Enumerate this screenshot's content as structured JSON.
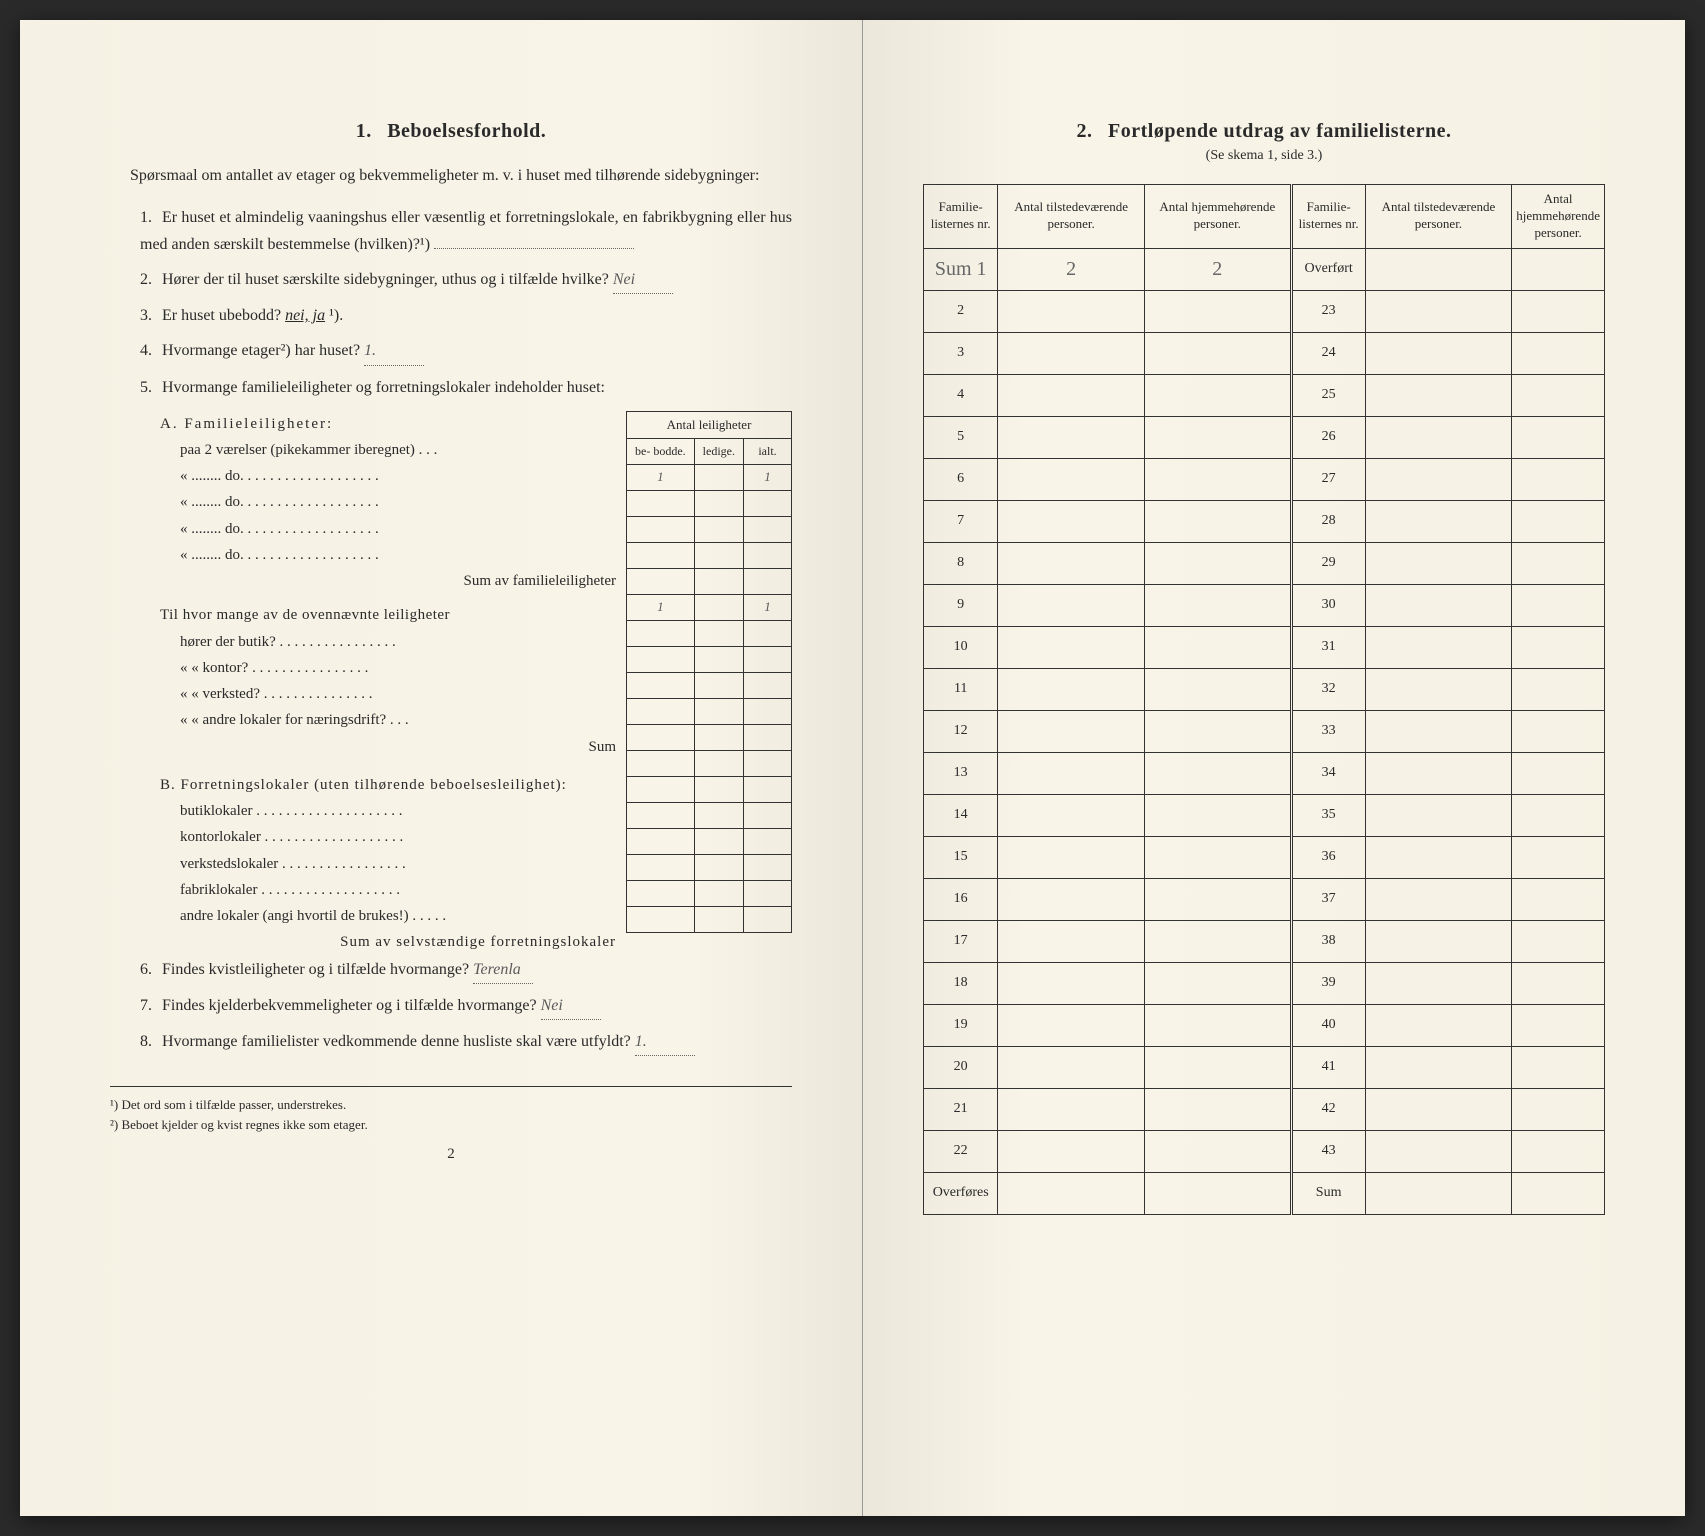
{
  "left": {
    "section_num": "1.",
    "section_title": "Beboelsesforhold.",
    "intro": "Spørsmaal om antallet av etager og bekvemmeligheter m. v. i huset med tilhørende sidebygninger:",
    "q1": "Er huset et almindelig vaaningshus eller væsentlig et forretningslokale, en fabrikbygning eller hus med anden særskilt bestemmelse (hvilken)?¹)",
    "q2": "Hører der til huset særskilte sidebygninger, uthus og i tilfælde hvilke?",
    "q2_answer": "Nei",
    "q3_pre": "Er huset ubebodd?",
    "q3_opts": "nei,  ja",
    "q3_suffix": "¹).",
    "q4_pre": "Hvormange etager²) har huset?",
    "q4_answer": "1.",
    "q5": "Hvormange familieleiligheter og forretningslokaler indeholder huset:",
    "leil_header_top": "Antal leiligheter",
    "leil_header_cols": [
      "be-\nbodde.",
      "ledige.",
      "ialt."
    ],
    "A_title": "A. Familieleiligheter:",
    "A_rows": [
      "paa 2 værelser (pikekammer iberegnet) . . .",
      "«  ........  do.  . . . . . . . . . . . . . . . . . .",
      "«  ........  do.  . . . . . . . . . . . . . . . . . .",
      "«  ........  do.  . . . . . . . . . . . . . . . . . .",
      "«  ........  do.  . . . . . . . . . . . . . . . . . ."
    ],
    "A_sum_label": "Sum av familieleiligheter",
    "A_values": {
      "row0": [
        "1",
        "",
        "1"
      ],
      "sum": [
        "1",
        "",
        "1"
      ]
    },
    "A_sub_pre": "Til hvor mange av de ovennævnte leiligheter",
    "A_sub_rows": [
      "hører der butik? . . . . . . . . . . . . . . . .",
      "«     «   kontor? . . . . . . . . . . . . . . . .",
      "«     «   verksted? . . . . . . . . . . . . . . .",
      "«     «   andre lokaler for næringsdrift? . . ."
    ],
    "A_sub_sum": "Sum",
    "B_title": "B. Forretningslokaler (uten tilhørende beboelsesleilighet):",
    "B_rows": [
      "butiklokaler . . . . . . . . . . . . . . . . . . . .",
      "kontorlokaler . . . . . . . . . . . . . . . . . . .",
      "verkstedslokaler . . . . . . . . . . . . . . . . .",
      "fabriklokaler . . . . . . . . . . . . . . . . . . .",
      "andre lokaler (angi hvortil de brukes!) . . . . ."
    ],
    "B_sum_label": "Sum av selvstændige forretningslokaler",
    "q6": "Findes kvistleiligheter og i tilfælde hvormange?",
    "q6_answer": "Terenla",
    "q7": "Findes kjelderbekvemmeligheter og i tilfælde hvormange?",
    "q7_answer": "Nei",
    "q8": "Hvormange familielister vedkommende denne husliste skal være utfyldt?",
    "q8_answer": "1.",
    "footnote1": "¹) Det ord som i tilfælde passer, understrekes.",
    "footnote2": "²) Beboet kjelder og kvist regnes ikke som etager.",
    "page_num": "2"
  },
  "right": {
    "section_num": "2.",
    "section_title": "Fortløpende utdrag av familielisterne.",
    "subtitle": "(Se skema 1, side 3.)",
    "headers": [
      "Familie-\nlisternes\nnr.",
      "Antal\ntilstedeværende\npersoner.",
      "Antal\nhjemmehørende\npersoner.",
      "Familie-\nlisternes\nnr.",
      "Antal\ntilstedeværende\npersoner.",
      "Antal\nhjemmehørende\npersoner."
    ],
    "left_first_row": {
      "nr": "Sum 1",
      "tilstede": "2",
      "hjemme": "2"
    },
    "right_first_label": "Overført",
    "left_nrs": [
      "2",
      "3",
      "4",
      "5",
      "6",
      "7",
      "8",
      "9",
      "10",
      "11",
      "12",
      "13",
      "14",
      "15",
      "16",
      "17",
      "18",
      "19",
      "20",
      "21",
      "22"
    ],
    "right_nrs": [
      "23",
      "24",
      "25",
      "26",
      "27",
      "28",
      "29",
      "30",
      "31",
      "32",
      "33",
      "34",
      "35",
      "36",
      "37",
      "38",
      "39",
      "40",
      "41",
      "42",
      "43"
    ],
    "left_last": "Overføres",
    "right_last": "Sum"
  },
  "colors": {
    "page_bg": "#f5f1e4",
    "text": "#2a2a2a",
    "border": "#333333",
    "handwriting": "#5a5a5a"
  }
}
